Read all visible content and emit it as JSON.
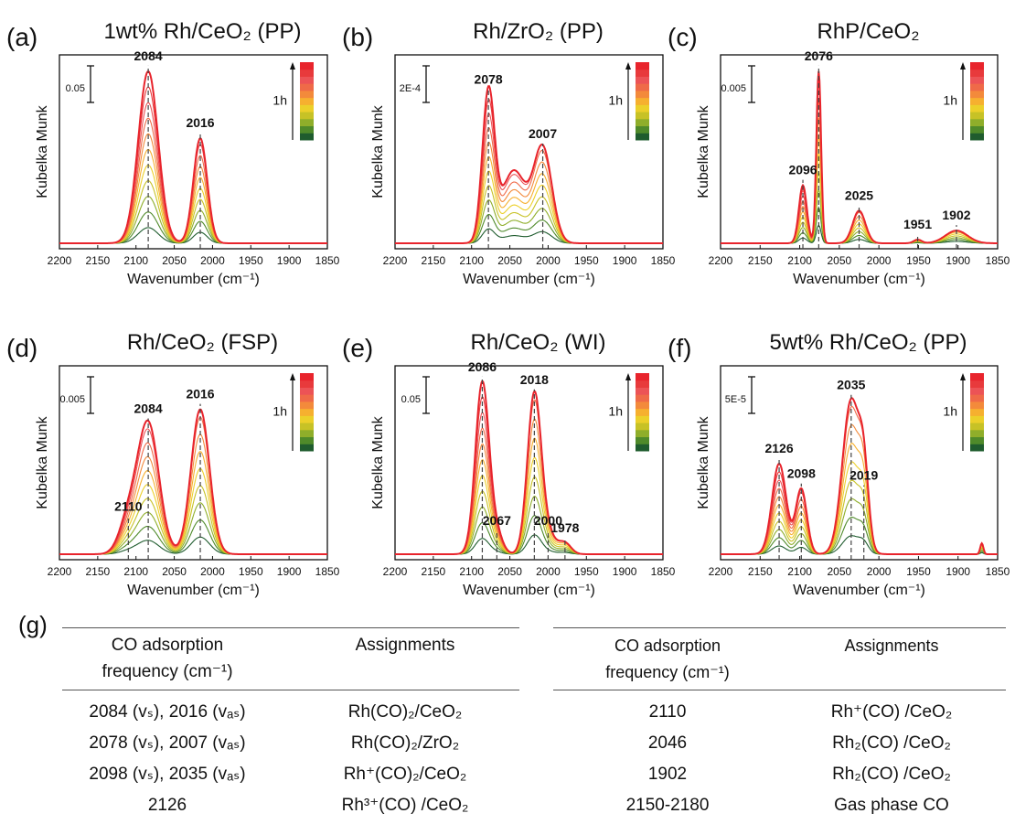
{
  "figure_label_g": "(g)",
  "colors": {
    "scale": [
      "#1f5c2e",
      "#4f8a2a",
      "#8fae2a",
      "#c7c226",
      "#ecd02a",
      "#f6b02f",
      "#f38a3b",
      "#ef6a48",
      "#ec5356",
      "#e83a3c",
      "#e8242c"
    ],
    "axis": "#111111",
    "dashed": "#444444"
  },
  "chart_data": [
    {
      "type": "line",
      "panel": "(a)",
      "title": "1wt% Rh/CeO₂ (PP)",
      "xlabel": "Wavenumber (cm⁻¹)",
      "ylabel": "Kubelka Munk",
      "xlim": [
        2200,
        1850
      ],
      "xticks": [
        2200,
        2150,
        2100,
        2050,
        2000,
        1950,
        1900,
        1850
      ],
      "ylim": [
        0,
        1
      ],
      "scalebar": "0.05",
      "colorbar_label": "1h",
      "peaks": [
        {
          "x": 2084,
          "label": "2084",
          "h": 0.95,
          "w": 13
        },
        {
          "x": 2016,
          "label": "2016",
          "h": 0.58,
          "w": 9
        }
      ]
    },
    {
      "type": "line",
      "panel": "(b)",
      "title": "Rh/ZrO₂ (PP)",
      "xlabel": "Wavenumber (cm⁻¹)",
      "ylabel": "Kubelka Munk",
      "xlim": [
        2200,
        1850
      ],
      "xticks": [
        2200,
        2150,
        2100,
        2050,
        2000,
        1950,
        1900,
        1850
      ],
      "ylim": [
        0,
        1
      ],
      "scalebar": "2E-4",
      "colorbar_label": "1h",
      "peaks": [
        {
          "x": 2078,
          "label": "2078",
          "h": 0.82,
          "w": 8
        },
        {
          "x": 2045,
          "label": "",
          "h": 0.4,
          "w": 16
        },
        {
          "x": 2007,
          "label": "2007",
          "h": 0.52,
          "w": 12
        }
      ]
    },
    {
      "type": "line",
      "panel": "(c)",
      "title": "RhP/CeO₂",
      "xlabel": "Wavenumber (cm⁻¹)",
      "ylabel": "Kubelka Munk",
      "xlim": [
        2200,
        1850
      ],
      "xticks": [
        2200,
        2150,
        2100,
        2050,
        2000,
        1950,
        1900,
        1850
      ],
      "ylim": [
        0,
        1
      ],
      "scalebar": "0.005",
      "colorbar_label": "1h",
      "peaks": [
        {
          "x": 2096,
          "label": "2096",
          "h": 0.32,
          "w": 5
        },
        {
          "x": 2076,
          "label": "2076",
          "h": 0.95,
          "w": 3
        },
        {
          "x": 2025,
          "label": "2025",
          "h": 0.18,
          "w": 8
        },
        {
          "x": 1951,
          "label": "1951",
          "h": 0.02,
          "w": 5
        },
        {
          "x": 1902,
          "label": "1902",
          "h": 0.07,
          "w": 14
        }
      ]
    },
    {
      "type": "line",
      "panel": "(d)",
      "title": "Rh/CeO₂ (FSP)",
      "xlabel": "Wavenumber (cm⁻¹)",
      "ylabel": "Kubelka Munk",
      "xlim": [
        2200,
        1850
      ],
      "xticks": [
        2200,
        2150,
        2100,
        2050,
        2000,
        1950,
        1900,
        1850
      ],
      "ylim": [
        0,
        1
      ],
      "scalebar": "0.005",
      "colorbar_label": "1h",
      "peaks": [
        {
          "x": 2110,
          "label": "2110",
          "h": 0.18,
          "w": 12
        },
        {
          "x": 2084,
          "label": "2084",
          "h": 0.72,
          "w": 14
        },
        {
          "x": 2016,
          "label": "2016",
          "h": 0.8,
          "w": 12
        }
      ]
    },
    {
      "type": "line",
      "panel": "(e)",
      "title": "Rh/CeO₂ (WI)",
      "xlabel": "Wavenumber (cm⁻¹)",
      "ylabel": "Kubelka Munk",
      "xlim": [
        2200,
        1850
      ],
      "xticks": [
        2200,
        2150,
        2100,
        2050,
        2000,
        1950,
        1900,
        1850
      ],
      "ylim": [
        0,
        1
      ],
      "scalebar": "0.05",
      "colorbar_label": "1h",
      "peaks": [
        {
          "x": 2086,
          "label": "2086",
          "h": 0.95,
          "w": 9
        },
        {
          "x": 2067,
          "label": "2067",
          "h": 0.1,
          "w": 8
        },
        {
          "x": 2018,
          "label": "2018",
          "h": 0.88,
          "w": 9
        },
        {
          "x": 2000,
          "label": "2000",
          "h": 0.1,
          "w": 10
        },
        {
          "x": 1978,
          "label": "1978",
          "h": 0.06,
          "w": 8
        }
      ]
    },
    {
      "type": "line",
      "panel": "(f)",
      "title": "5wt% Rh/CeO₂ (PP)",
      "xlabel": "Wavenumber (cm⁻¹)",
      "ylabel": "Kubelka Munk",
      "xlim": [
        2200,
        1850
      ],
      "xticks": [
        2200,
        2150,
        2100,
        2050,
        2000,
        1950,
        1900,
        1850
      ],
      "ylim": [
        0,
        1
      ],
      "scalebar": "5E-5",
      "colorbar_label": "1h",
      "peaks": [
        {
          "x": 2126,
          "label": "2126",
          "h": 0.5,
          "w": 9
        },
        {
          "x": 2098,
          "label": "2098",
          "h": 0.36,
          "w": 7
        },
        {
          "x": 2035,
          "label": "2035",
          "h": 0.85,
          "w": 11
        },
        {
          "x": 2019,
          "label": "2019",
          "h": 0.35,
          "w": 6
        },
        {
          "x": 1870,
          "label": "",
          "h": 0.06,
          "w": 2
        }
      ]
    }
  ],
  "table_left": {
    "header_col1_line1": "CO adsorption",
    "header_col1_line2": "frequency (cm⁻¹)",
    "header_col2": "Assignments",
    "rows": [
      {
        "freq": "2084 (vₛ), 2016 (vₐₛ)",
        "assign": "Rh(CO)₂/CeO₂"
      },
      {
        "freq": "2078 (vₛ), 2007 (vₐₛ)",
        "assign": "Rh(CO)₂/ZrO₂"
      },
      {
        "freq": "2098 (vₛ), 2035 (vₐₛ)",
        "assign": "Rh⁺(CO)₂/CeO₂"
      },
      {
        "freq": "2126",
        "assign": "Rh³⁺(CO) /CeO₂"
      }
    ]
  },
  "table_right": {
    "header_col1_line1": "CO adsorption",
    "header_col1_line2": "frequency (cm⁻¹)",
    "header_col2": "Assignments",
    "rows": [
      {
        "freq": "2110",
        "assign": "Rh⁺(CO) /CeO₂"
      },
      {
        "freq": "2046",
        "assign": "Rh₂(CO) /CeO₂"
      },
      {
        "freq": "1902",
        "assign": "Rh₂(CO) /CeO₂"
      },
      {
        "freq": "2150-2180",
        "assign": "Gas phase CO"
      }
    ]
  }
}
